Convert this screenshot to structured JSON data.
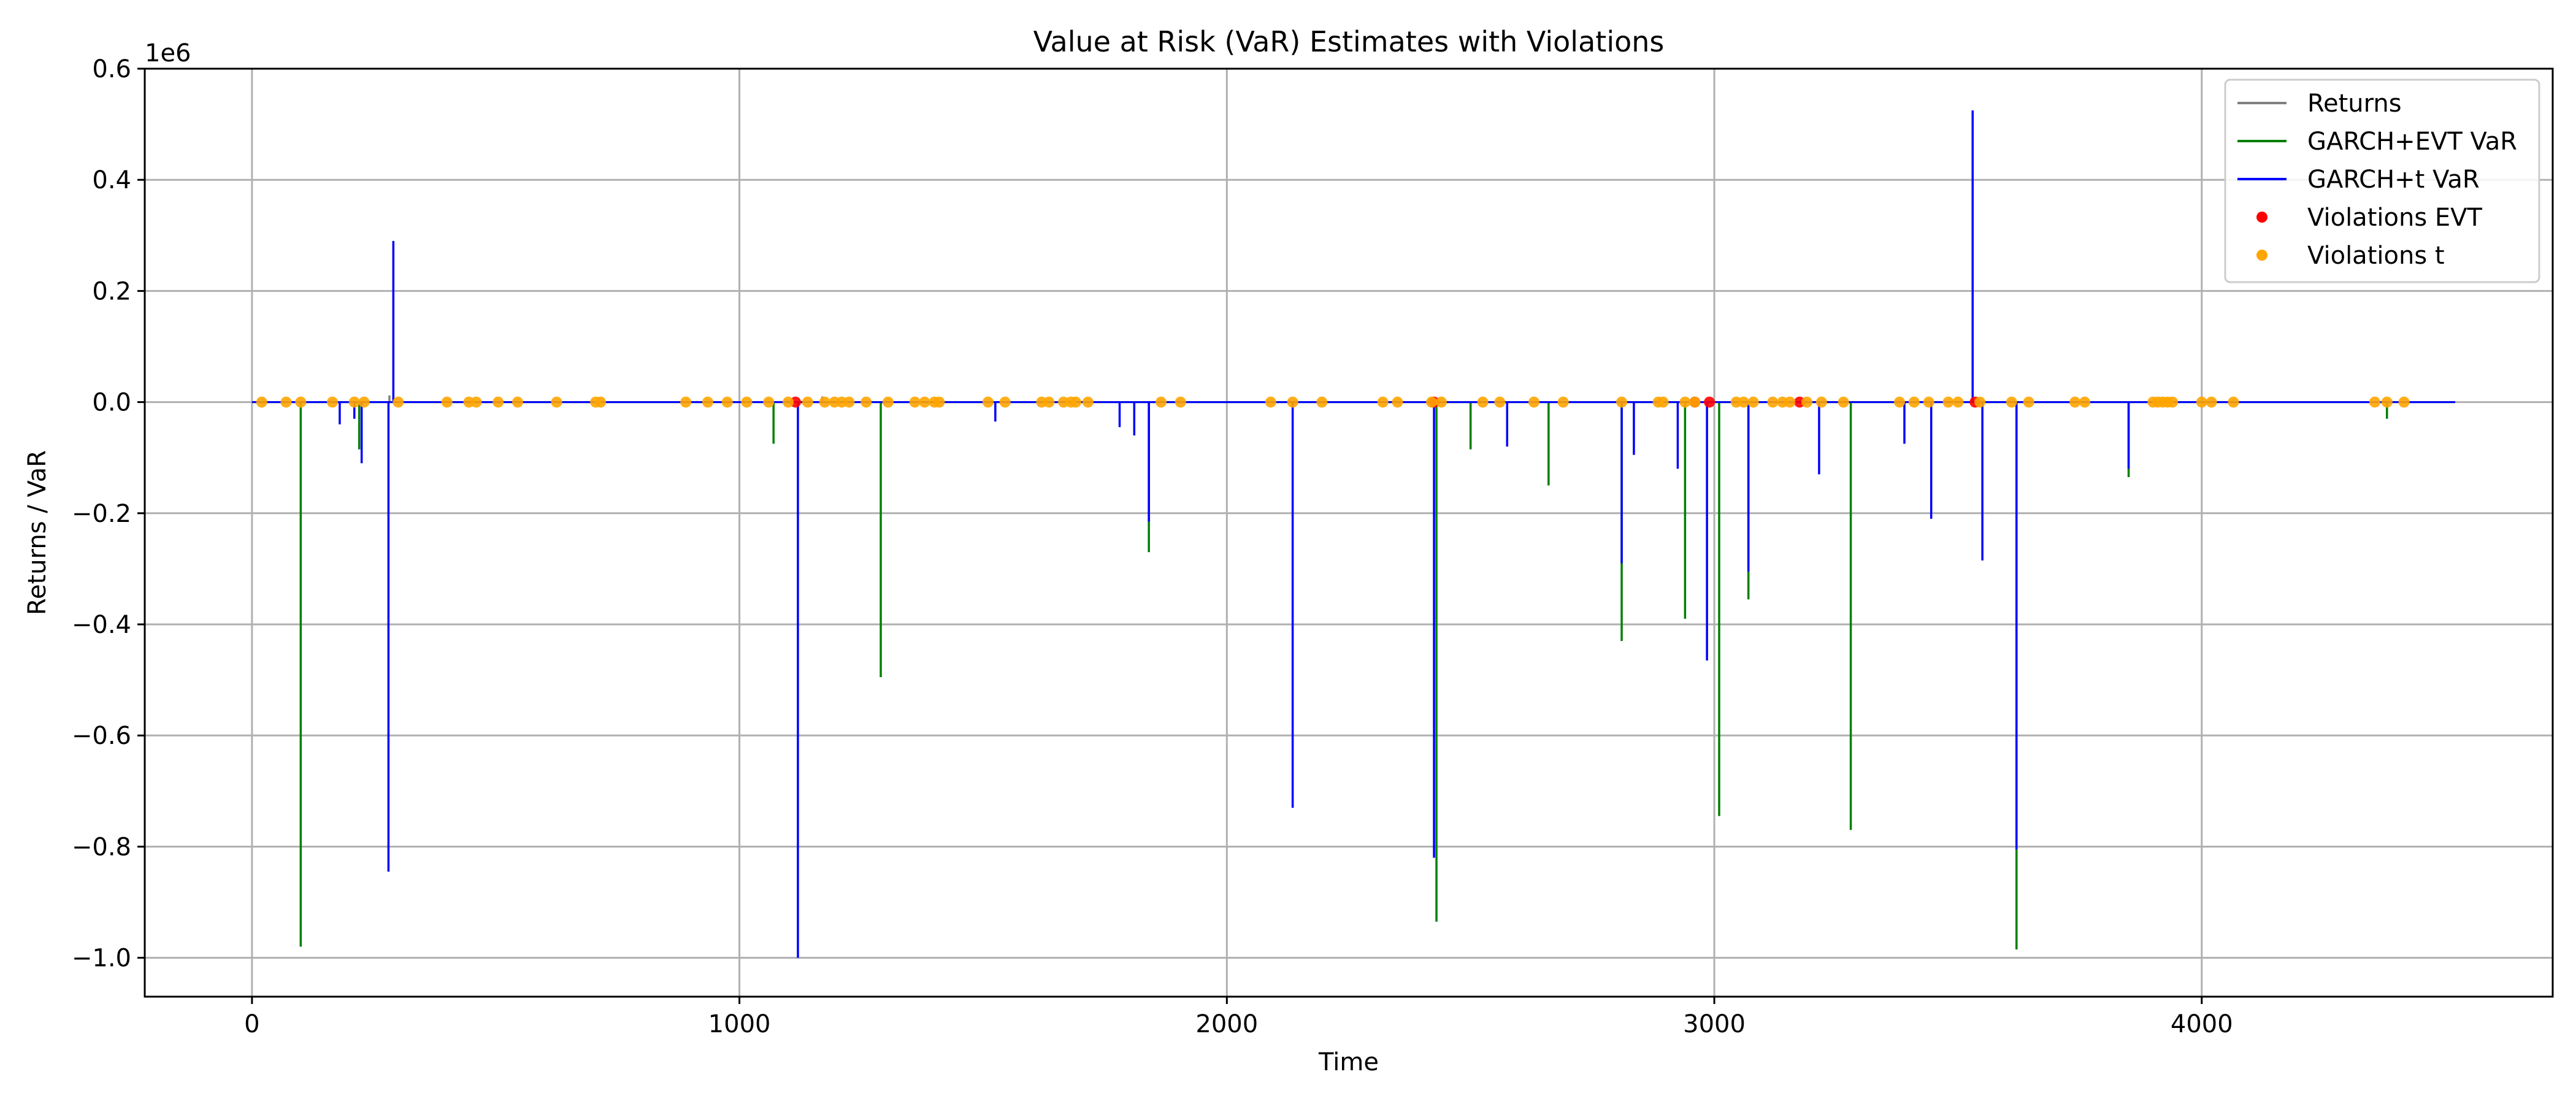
{
  "chart_data": {
    "type": "line",
    "title": "Value at Risk (VaR) Estimates with Violations",
    "xlabel": "Time",
    "ylabel": "Returns / VaR",
    "y_offset_label": "1e6",
    "xlim": [
      -220,
      4720
    ],
    "ylim": [
      -1.07,
      0.6
    ],
    "x_ticks": [
      0,
      1000,
      2000,
      3000,
      4000
    ],
    "x_tick_labels": [
      "0",
      "1000",
      "2000",
      "3000",
      "4000"
    ],
    "y_ticks": [
      0.6,
      0.4,
      0.2,
      0.0,
      -0.2,
      -0.4,
      -0.6,
      -0.8,
      -1.0
    ],
    "y_tick_labels": [
      "0.6",
      "0.4",
      "0.2",
      "0.0",
      "−0.2",
      "−0.4",
      "−0.6",
      "−0.8",
      "−1.0"
    ],
    "grid": true,
    "legend_position": "top-right",
    "x_range": [
      0,
      4520
    ],
    "series": [
      {
        "name": "Returns",
        "color": "#808080",
        "kind": "line",
        "spikes": [
          [
            282,
            0.012
          ],
          [
            1170,
            0.01
          ],
          [
            3530,
            0.01
          ]
        ]
      },
      {
        "name": "GARCH+EVT VaR",
        "color": "#008000",
        "kind": "line",
        "spikes": [
          [
            100,
            -0.98
          ],
          [
            220,
            -0.085
          ],
          [
            1070,
            -0.075
          ],
          [
            1290,
            -0.495
          ],
          [
            1840,
            -0.27
          ],
          [
            2430,
            -0.935
          ],
          [
            2500,
            -0.085
          ],
          [
            2660,
            -0.15
          ],
          [
            2810,
            -0.43
          ],
          [
            2940,
            -0.39
          ],
          [
            3010,
            -0.745
          ],
          [
            3070,
            -0.355
          ],
          [
            3280,
            -0.77
          ],
          [
            3620,
            -0.985
          ],
          [
            3850,
            -0.135
          ],
          [
            4380,
            -0.03
          ]
        ]
      },
      {
        "name": "GARCH+t VaR",
        "color": "#0000ff",
        "kind": "line",
        "spikes": [
          [
            180,
            -0.04
          ],
          [
            210,
            -0.03
          ],
          [
            225,
            -0.11
          ],
          [
            280,
            -0.845
          ],
          [
            290,
            0.29
          ],
          [
            1120,
            -1.0
          ],
          [
            1525,
            -0.035
          ],
          [
            1780,
            -0.045
          ],
          [
            1810,
            -0.06
          ],
          [
            1840,
            -0.215
          ],
          [
            2135,
            -0.73
          ],
          [
            2425,
            -0.82
          ],
          [
            2575,
            -0.08
          ],
          [
            2810,
            -0.29
          ],
          [
            2835,
            -0.095
          ],
          [
            2925,
            -0.12
          ],
          [
            2985,
            -0.465
          ],
          [
            3070,
            -0.305
          ],
          [
            3215,
            -0.13
          ],
          [
            3390,
            -0.075
          ],
          [
            3445,
            -0.21
          ],
          [
            3530,
            0.525
          ],
          [
            3550,
            -0.285
          ],
          [
            3620,
            -0.805
          ],
          [
            3850,
            -0.12
          ]
        ]
      },
      {
        "name": "Violations EVT",
        "color": "#ff0000",
        "kind": "scatter",
        "x": [
          1115,
          2425,
          2960,
          2990,
          3175,
          3535
        ]
      },
      {
        "name": "Violations t",
        "color": "#ffa500",
        "kind": "scatter",
        "x": [
          20,
          70,
          100,
          165,
          210,
          230,
          300,
          400,
          445,
          460,
          505,
          545,
          625,
          705,
          715,
          890,
          935,
          975,
          1015,
          1060,
          1100,
          1140,
          1175,
          1195,
          1210,
          1225,
          1260,
          1305,
          1360,
          1380,
          1400,
          1410,
          1510,
          1545,
          1620,
          1635,
          1665,
          1680,
          1690,
          1715,
          1865,
          1905,
          2090,
          2135,
          2195,
          2320,
          2350,
          2420,
          2440,
          2525,
          2560,
          2630,
          2690,
          2810,
          2885,
          2895,
          2940,
          2960,
          3045,
          3060,
          3080,
          3120,
          3140,
          3155,
          3190,
          3220,
          3265,
          3380,
          3410,
          3440,
          3480,
          3500,
          3545,
          3610,
          3645,
          3740,
          3760,
          3900,
          3910,
          3920,
          3930,
          3940,
          4000,
          4020,
          4065,
          4355,
          4380,
          4415
        ]
      }
    ]
  }
}
